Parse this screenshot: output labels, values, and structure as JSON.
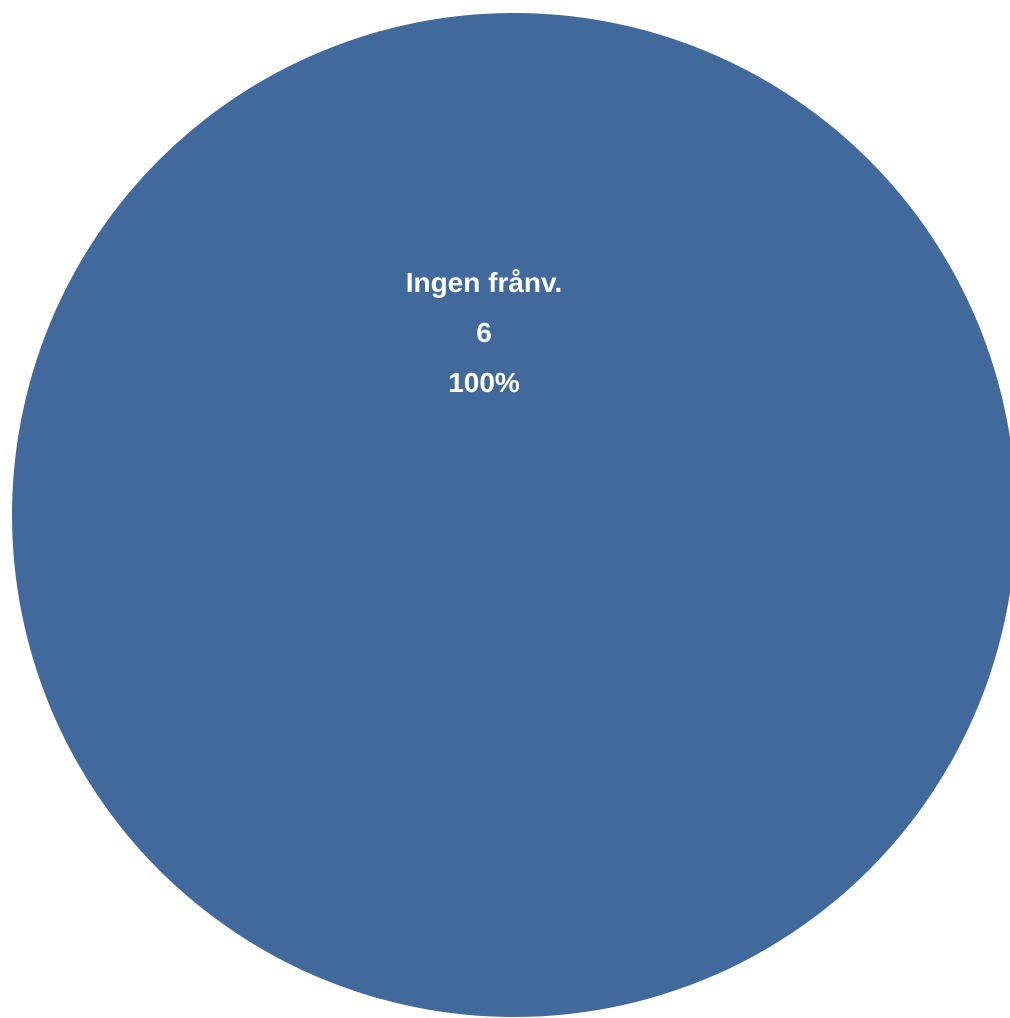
{
  "chart_data": {
    "type": "pie",
    "title": "",
    "slices": [
      {
        "label": "Ingen frånv.",
        "value": 6,
        "percent_label": "100%",
        "color": "#41699C"
      }
    ]
  }
}
